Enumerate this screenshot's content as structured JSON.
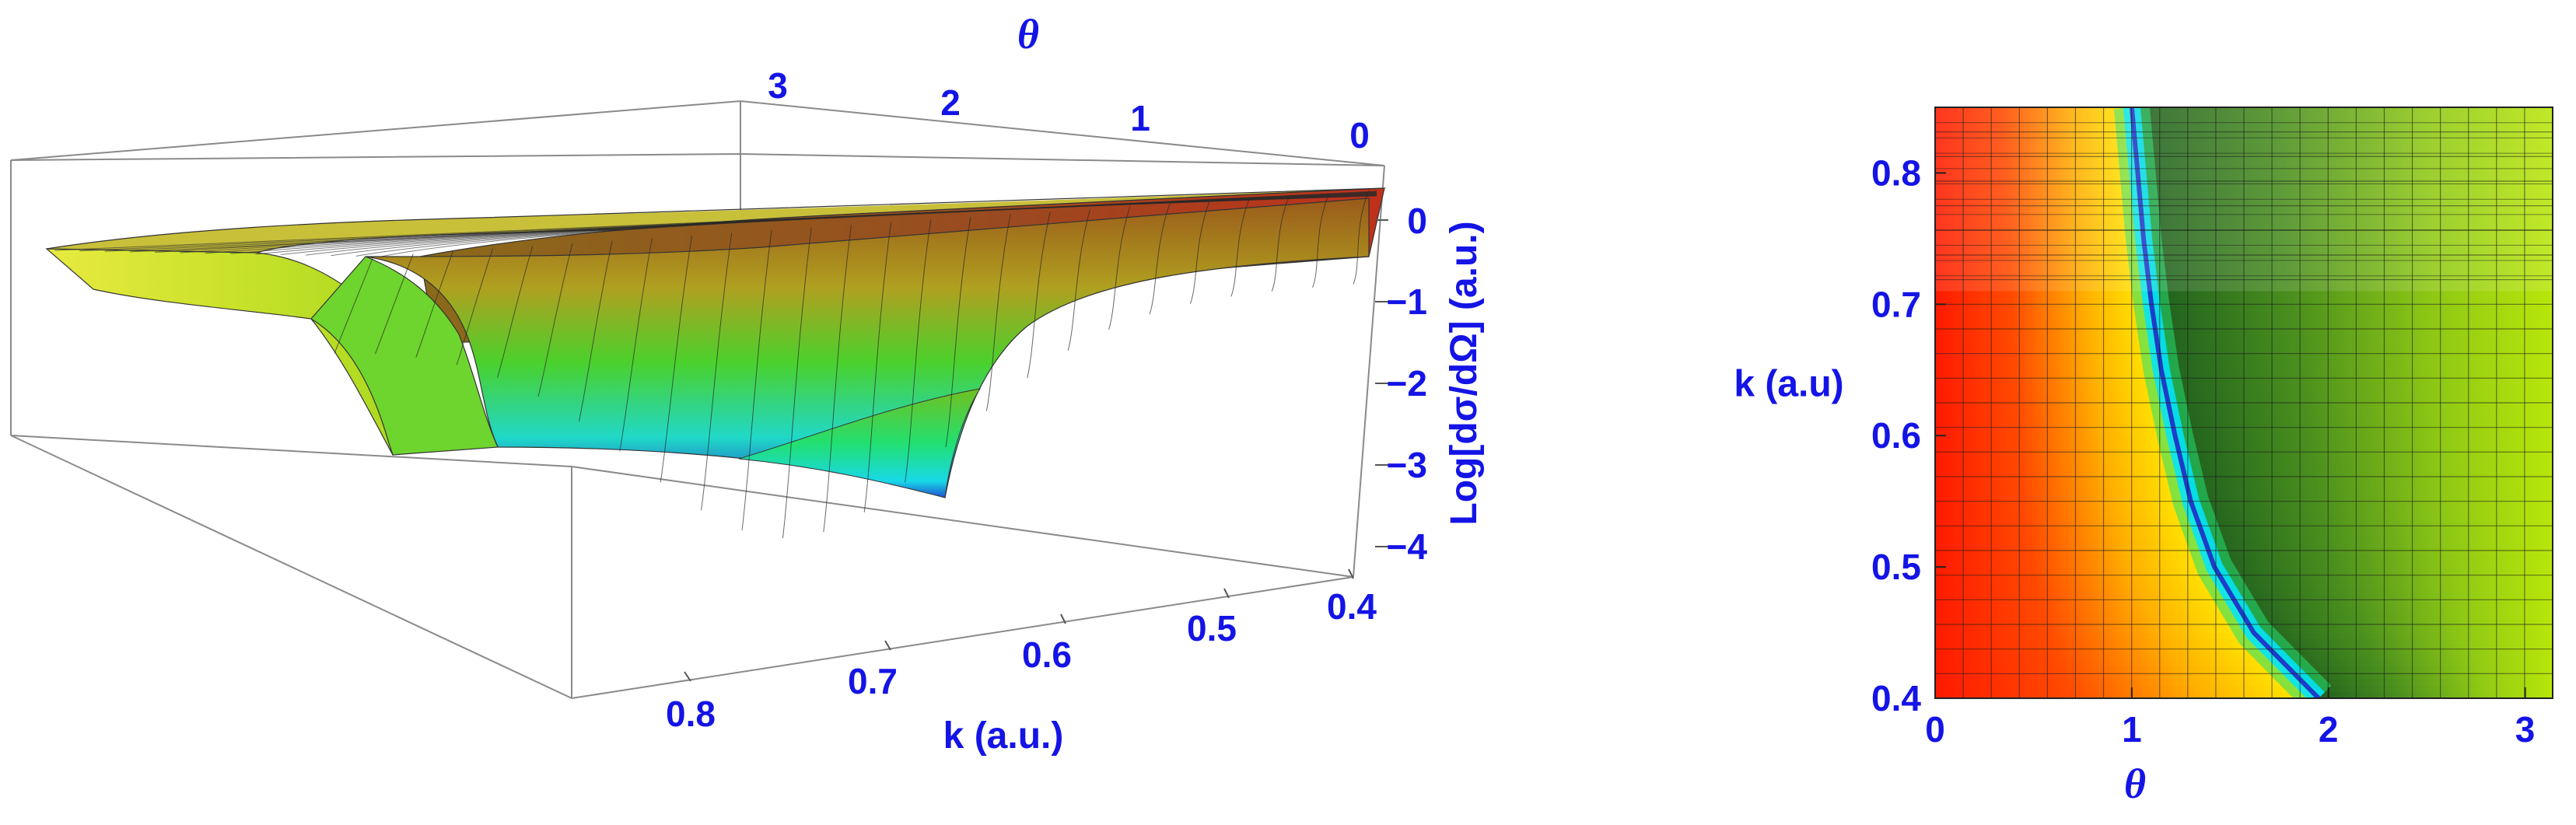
{
  "chart_data": [
    {
      "type": "surface3d",
      "x_name": "θ",
      "y_name": "k (a.u.)",
      "z_name": "Log[dσ/dΩ] (a.u.)",
      "x_ticks": [
        "3",
        "2",
        "1",
        "0"
      ],
      "y_ticks": [
        "0.8",
        "0.7",
        "0.6",
        "0.5",
        "0.4"
      ],
      "z_ticks": [
        "0",
        "−1",
        "−2",
        "−3",
        "−4"
      ],
      "xlim": [
        0,
        3.14
      ],
      "ylim": [
        0.4,
        0.85
      ],
      "zlim": [
        -4.3,
        0.5
      ],
      "description_values": {
        "theta_min_at_k_0.4": 1.95,
        "theta_min_at_k_0.85": 1.0,
        "z_min": -3.8,
        "z_max_at_theta_0": 0.3
      },
      "colormap": [
        "#1e3cc8",
        "#00e5ff",
        "#22d24a",
        "#c8e600",
        "#ffef00",
        "#ff7a00",
        "#c81e0f"
      ]
    },
    {
      "type": "heatmap",
      "x_name": "θ",
      "y_name": "k (a.u)",
      "x_ticks": [
        "0",
        "1",
        "2",
        "3"
      ],
      "y_ticks": [
        "0.4",
        "0.5",
        "0.6",
        "0.7",
        "0.8"
      ],
      "xlim": [
        0,
        3.14
      ],
      "ylim": [
        0.4,
        0.85
      ],
      "minimum_curve": [
        [
          0.4,
          1.95
        ],
        [
          0.45,
          1.62
        ],
        [
          0.5,
          1.42
        ],
        [
          0.55,
          1.3
        ],
        [
          0.6,
          1.22
        ],
        [
          0.65,
          1.15
        ],
        [
          0.7,
          1.1
        ],
        [
          0.75,
          1.06
        ],
        [
          0.8,
          1.03
        ],
        [
          0.85,
          1.0
        ]
      ],
      "colors": {
        "red": "#ff1e00",
        "yellow": "#ffee00",
        "cyan": "#00e5ff",
        "dark_green": "#1e6e1e",
        "light_green": "#aae000"
      }
    }
  ]
}
